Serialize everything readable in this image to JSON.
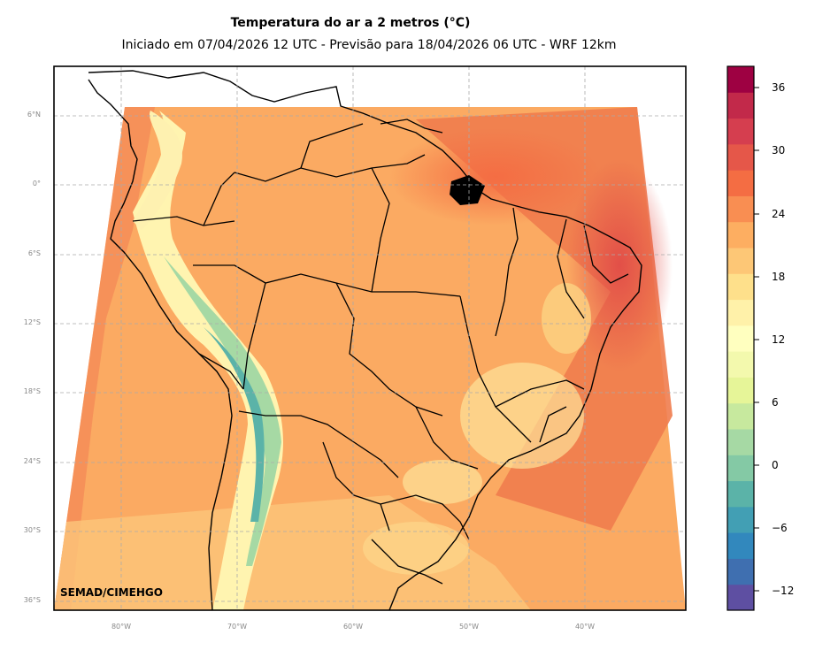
{
  "title": "Temperatura do ar a 2 metros (°C)",
  "subtitle": "Iniciado em 07/04/2026 12 UTC - Previsão para 18/04/2026 06 UTC - WRF 12km",
  "credit": "SEMAD/CIMEHGO",
  "lat_labels": [
    "6°N",
    "0°",
    "6°S",
    "12°S",
    "18°S",
    "24°S",
    "30°S",
    "36°S"
  ],
  "lon_labels": [
    "80°W",
    "70°W",
    "60°W",
    "50°W",
    "40°W"
  ],
  "colorbar": {
    "ticks": [
      "36",
      "30",
      "24",
      "18",
      "12",
      "6",
      "0",
      "−6",
      "−12"
    ],
    "range": [
      -14,
      38
    ],
    "colors": [
      "#5e4fa2",
      "#3f6fb0",
      "#3288bd",
      "#429fb4",
      "#5bb3a8",
      "#84c9a5",
      "#a6d9a4",
      "#c7e99e",
      "#e6f598",
      "#f3f9ad",
      "#ffffbf",
      "#fff1a9",
      "#fee08b",
      "#fdc776",
      "#fdae61",
      "#f98e52",
      "#f46d43",
      "#e55749",
      "#d53e4f",
      "#c2294a",
      "#9e0142"
    ]
  }
}
